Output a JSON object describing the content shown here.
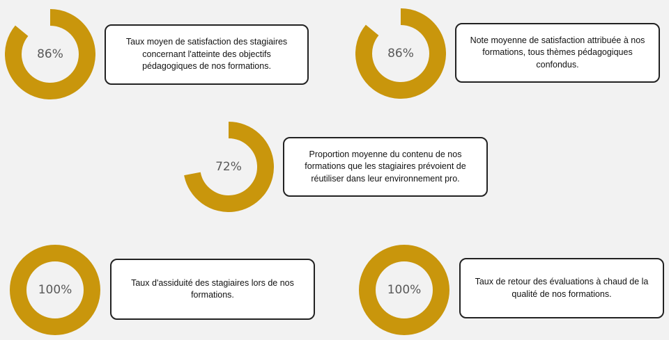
{
  "colors": {
    "ring": "#c9960c",
    "background": "#f2f2f2",
    "card_border": "#222222"
  },
  "chart_data": [
    {
      "type": "pie",
      "style": "donut",
      "value": 86,
      "unit": "%",
      "label": "86%",
      "caption": "Taux moyen de satisfaction des stagiaires concernant l'atteinte des objectifs pédagogiques de nos formations."
    },
    {
      "type": "pie",
      "style": "donut",
      "value": 86,
      "unit": "%",
      "label": "86%",
      "caption": "Note moyenne de satisfaction attribuée à nos formations, tous thèmes pédagogiques confondus."
    },
    {
      "type": "pie",
      "style": "donut",
      "value": 72,
      "unit": "%",
      "label": "72%",
      "caption": "Proportion moyenne du contenu de nos formations que les stagiaires prévoient de réutiliser dans leur environnement pro."
    },
    {
      "type": "pie",
      "style": "donut",
      "value": 100,
      "unit": "%",
      "label": "100%",
      "caption": "Taux d'assiduité des stagiaires lors de nos formations."
    },
    {
      "type": "pie",
      "style": "donut",
      "value": 100,
      "unit": "%",
      "label": "100%",
      "caption": "Taux de retour des évaluations à chaud de la qualité de nos formations."
    }
  ]
}
